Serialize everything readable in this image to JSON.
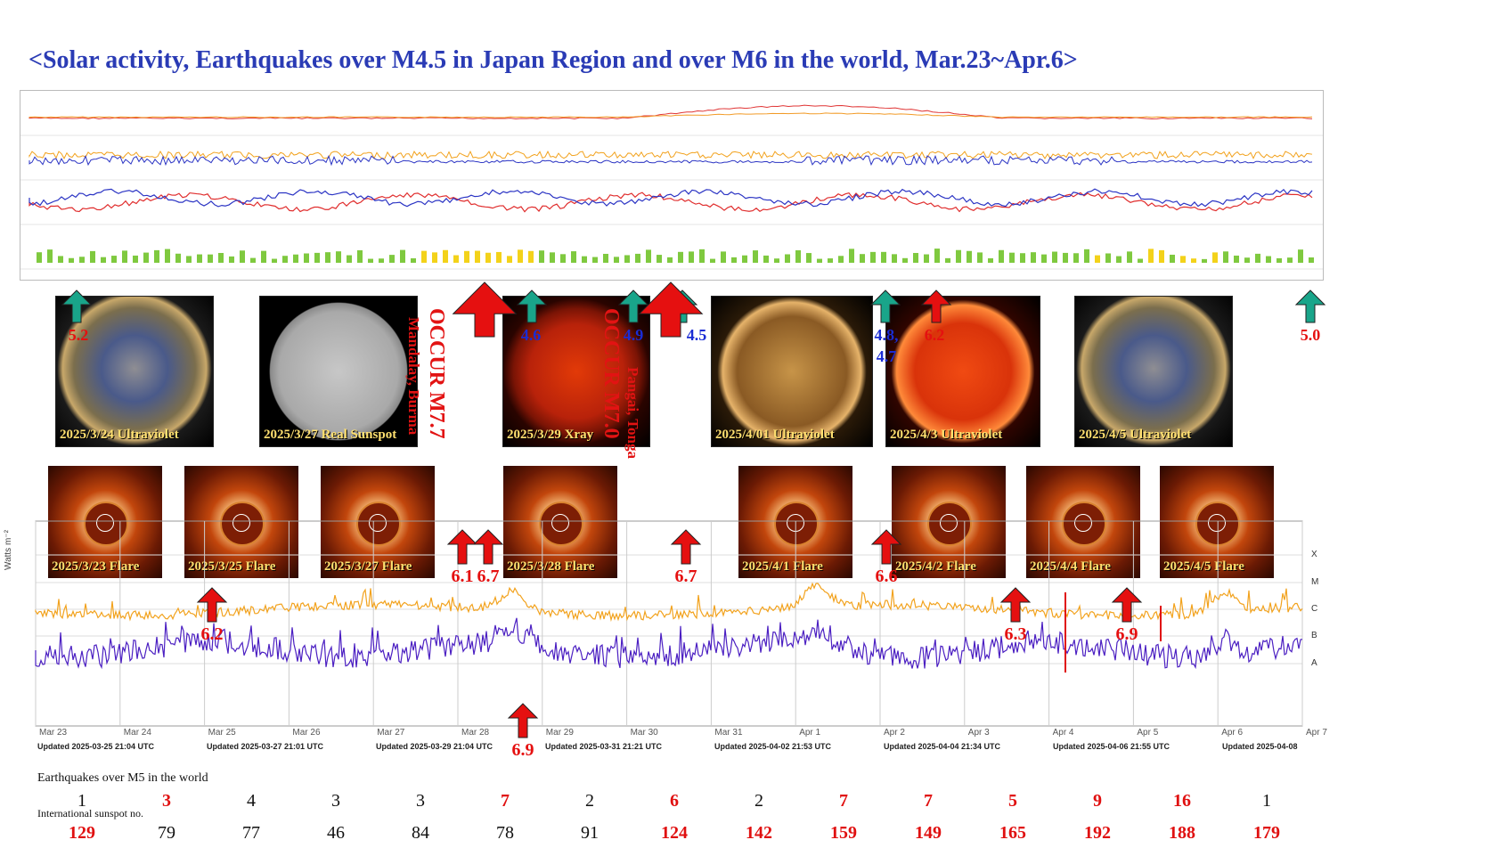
{
  "title": "<Solar activity, Earthquakes over M4.5 in Japan Region and over M6 in the world, Mar.23~Apr.6>",
  "colors": {
    "title": "#2a3bb5",
    "red": "#e51010",
    "blue": "#1a2cd4",
    "green": "#19a58a",
    "orange": "#f2a21d",
    "purple": "#4b1fc2"
  },
  "images_top": [
    {
      "caption": "2025/3/24 Ultraviolet",
      "kind": "uv-blue"
    },
    {
      "caption": "2025/3/27 Real Sunspot",
      "kind": "gray"
    },
    {
      "caption": "2025/3/29 Xray",
      "kind": "xray"
    },
    {
      "caption": "2025/4/01 Ultraviolet",
      "kind": "uv-brown"
    },
    {
      "caption": "2025/4/3 Ultraviolet",
      "kind": "uv-red"
    },
    {
      "caption": "2025/4/5 Ultraviolet",
      "kind": "uv-blue"
    }
  ],
  "images_flare": [
    {
      "caption": "2025/3/23 Flare"
    },
    {
      "caption": "2025/3/25 Flare"
    },
    {
      "caption": "2025/3/27 Flare"
    },
    {
      "caption": "2025/3/28 Flare"
    },
    {
      "caption": "2025/4/1 Flare"
    },
    {
      "caption": "2025/4/2 Flare"
    },
    {
      "caption": "2025/4/4 Flare"
    },
    {
      "caption": "2025/4/5 Flare"
    }
  ],
  "top_markers": [
    {
      "value": "5.2",
      "color": "red"
    },
    {
      "value": "4.6",
      "color": "blue"
    },
    {
      "value": "4.9",
      "color": "blue"
    },
    {
      "value": "4.5",
      "color": "blue"
    },
    {
      "value": "4.8, 4.7",
      "color": "blue"
    },
    {
      "value": "6.2",
      "color": "red"
    },
    {
      "value": "5.0",
      "color": "red"
    }
  ],
  "big_events": [
    {
      "label": "OCCUR M7.7",
      "place": "Mandalay, Burma"
    },
    {
      "label": "OCCUR M7.0",
      "place": "Pangai, Tonga"
    }
  ],
  "bottom_markers": [
    "6.1",
    "6.7",
    "6.7",
    "6.6",
    "6.2",
    "6.3",
    "6.9",
    "6.9"
  ],
  "xray": {
    "y_label": "Watts m⁻²",
    "class_labels": [
      "X",
      "M",
      "C",
      "B",
      "A"
    ],
    "days": [
      "Mar 23",
      "Mar 24",
      "Mar 25",
      "Mar 26",
      "Mar 27",
      "Mar 28",
      "Mar 29",
      "Mar 30",
      "Mar 31",
      "Apr 1",
      "Apr 2",
      "Apr 3",
      "Apr 4",
      "Apr 5",
      "Apr 6",
      "Apr 7"
    ],
    "updated": [
      "Updated 2025-03-25 21:04 UTC",
      "Updated 2025-03-27 21:01 UTC",
      "Updated 2025-03-29 21:04 UTC",
      "Updated 2025-03-31 21:21 UTC",
      "Updated 2025-04-02 21:53 UTC",
      "Updated 2025-04-04 21:34 UTC",
      "Updated 2025-04-06 21:55 UTC",
      "Updated 2025-04-08"
    ]
  },
  "earthquakes": {
    "label": "Earthquakes over M5 in the world",
    "values": [
      {
        "v": "1",
        "red": false
      },
      {
        "v": "3",
        "red": true
      },
      {
        "v": "4",
        "red": false
      },
      {
        "v": "3",
        "red": false
      },
      {
        "v": "3",
        "red": false
      },
      {
        "v": "7",
        "red": true
      },
      {
        "v": "2",
        "red": false
      },
      {
        "v": "6",
        "red": true
      },
      {
        "v": "2",
        "red": false
      },
      {
        "v": "7",
        "red": true
      },
      {
        "v": "7",
        "red": true
      },
      {
        "v": "5",
        "red": true
      },
      {
        "v": "9",
        "red": true
      },
      {
        "v": "16",
        "red": true
      },
      {
        "v": "1",
        "red": false
      }
    ]
  },
  "sunspots": {
    "label": "International sunspot no.",
    "values": [
      {
        "v": "129",
        "red": true
      },
      {
        "v": "79",
        "red": false
      },
      {
        "v": "77",
        "red": false
      },
      {
        "v": "46",
        "red": false
      },
      {
        "v": "84",
        "red": false
      },
      {
        "v": "78",
        "red": false
      },
      {
        "v": "91",
        "red": false
      },
      {
        "v": "124",
        "red": true
      },
      {
        "v": "142",
        "red": true
      },
      {
        "v": "159",
        "red": true
      },
      {
        "v": "149",
        "red": true
      },
      {
        "v": "165",
        "red": true
      },
      {
        "v": "192",
        "red": true
      },
      {
        "v": "188",
        "red": true
      },
      {
        "v": "179",
        "red": true
      }
    ]
  },
  "chart_data": {
    "type": "line",
    "title": "",
    "x": [
      "Mar 23",
      "Mar 24",
      "Mar 25",
      "Mar 26",
      "Mar 27",
      "Mar 28",
      "Mar 29",
      "Mar 30",
      "Mar 31",
      "Apr 1",
      "Apr 2",
      "Apr 3",
      "Apr 4",
      "Apr 5",
      "Apr 6"
    ],
    "series": [
      {
        "name": "Earthquakes over M5 in the world",
        "values": [
          1,
          3,
          4,
          3,
          3,
          7,
          2,
          6,
          2,
          7,
          7,
          5,
          9,
          16,
          1
        ]
      },
      {
        "name": "International sunspot no.",
        "values": [
          129,
          79,
          77,
          46,
          84,
          78,
          91,
          124,
          142,
          159,
          149,
          165,
          192,
          188,
          179
        ]
      }
    ],
    "xray_class_scale": [
      "A",
      "B",
      "C",
      "M",
      "X"
    ]
  }
}
